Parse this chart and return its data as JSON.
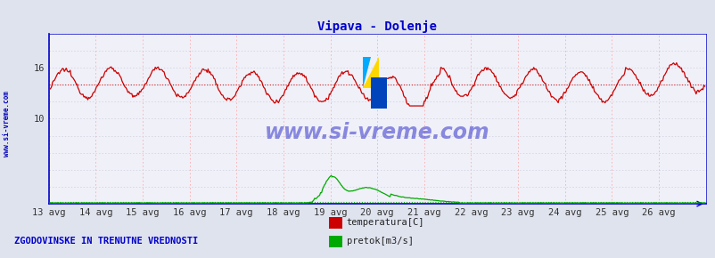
{
  "title": "Vipava - Dolenje",
  "title_color": "#0000cc",
  "bg_color": "#dfe3ee",
  "plot_bg_color": "#f0f0f8",
  "ylabel_left": "",
  "xlabel": "",
  "xlim": [
    0,
    672
  ],
  "ylim": [
    0,
    20
  ],
  "ytick_pos": [
    10,
    16
  ],
  "ytick_labels": [
    "10",
    "16"
  ],
  "x_tick_positions": [
    0,
    48,
    96,
    144,
    192,
    240,
    288,
    336,
    384,
    432,
    480,
    528,
    576,
    624
  ],
  "x_tick_labels": [
    "13 avg",
    "14 avg",
    "15 avg",
    "16 avg",
    "17 avg",
    "18 avg",
    "19 avg",
    "20 avg",
    "21 avg",
    "22 avg",
    "23 avg",
    "24 avg",
    "25 avg",
    "26 avg"
  ],
  "temp_avg_line": 14.0,
  "flow_avg_line": 0.18,
  "watermark_text": "www.si-vreme.com",
  "watermark_color": "#3333cc",
  "sidebar_text": "www.si-vreme.com",
  "sidebar_color": "#0000bb",
  "legend_text1": "temperatura[C]",
  "legend_text2": "pretok[m3/s]",
  "legend_color1": "#cc0000",
  "legend_color2": "#00aa00",
  "footer_text": "ZGODOVINSKE IN TRENUTNE VREDNOSTI",
  "footer_color": "#0000cc",
  "grid_color_v": "#ffaaaa",
  "grid_color_h": "#ccccdd",
  "temp_line_color": "#cc0000",
  "flow_line_color": "#00aa00",
  "axis_color": "#0000cc",
  "n_points": 672,
  "temp_base": 14.0,
  "temp_amp": 1.7,
  "flow_base": 0.08,
  "flow_scale": 2.5,
  "logo_yellow": "#FFD700",
  "logo_cyan": "#00AAFF",
  "logo_blue": "#0044BB"
}
